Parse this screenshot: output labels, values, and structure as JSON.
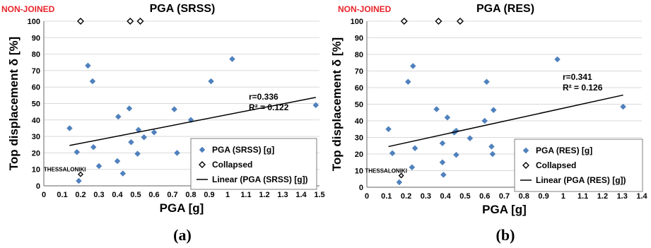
{
  "colors": {
    "marker": "#4F81BD",
    "tag": "#E8242A",
    "grid": "#D9D9D9",
    "axis": "#808080",
    "line": "#000000"
  },
  "chart_data": [
    {
      "type": "scatter",
      "panel_label": "(a)",
      "title": "PGA (SRSS)",
      "tag": "NON-JOINED",
      "xlabel": "PGA [g]",
      "ylabel": "Top displacement δ [%]",
      "xlim": [
        0,
        1.5
      ],
      "ylim": [
        0,
        100
      ],
      "x_ticks": [
        "0",
        "0.1",
        "0.2",
        "0.3",
        "0.4",
        "0.5",
        "0.6",
        "0.7",
        "0.8",
        "0.9",
        "1",
        "1.1",
        "1.2",
        "1.3",
        "1.4",
        "1.5"
      ],
      "y_ticks": [
        "0",
        "10",
        "20",
        "30",
        "40",
        "50",
        "60",
        "70",
        "80",
        "90",
        "100"
      ],
      "grid": true,
      "legend_position": "bottom-right",
      "series": [
        {
          "name": "PGA (SRSS) [g]",
          "marker": "diamond-filled",
          "points": [
            [
              0.14,
              35
            ],
            [
              0.18,
              20.5
            ],
            [
              0.19,
              3
            ],
            [
              0.24,
              73
            ],
            [
              0.265,
              63.5
            ],
            [
              0.27,
              23.5
            ],
            [
              0.3,
              12
            ],
            [
              0.4,
              15
            ],
            [
              0.405,
              42
            ],
            [
              0.43,
              7.5
            ],
            [
              0.465,
              47
            ],
            [
              0.475,
              26.5
            ],
            [
              0.51,
              19.5
            ],
            [
              0.515,
              34
            ],
            [
              0.545,
              29.5
            ],
            [
              0.6,
              32.5
            ],
            [
              0.71,
              46.5
            ],
            [
              0.725,
              20
            ],
            [
              0.8,
              40
            ],
            [
              0.85,
              24.5
            ],
            [
              0.91,
              63.5
            ],
            [
              0.985,
              22
            ],
            [
              1.025,
              77
            ],
            [
              1.48,
              49
            ]
          ]
        },
        {
          "name": "Collapsed",
          "marker": "diamond-open",
          "points": [
            [
              0.2,
              100
            ],
            [
              0.47,
              100
            ],
            [
              0.525,
              100
            ]
          ]
        },
        {
          "name": "Linear (PGA (SRSS) [g])",
          "marker": "line",
          "points": [
            [
              0.14,
              24.5
            ],
            [
              1.48,
              53.7
            ]
          ]
        }
      ],
      "annotations": [
        {
          "text": "r=0.336",
          "x": 1.05,
          "y": 59
        },
        {
          "text": "R² = 0.122",
          "x": 1.05,
          "y": 52
        },
        {
          "text": "THESSALONIKI",
          "x": 0.015,
          "y": 10
        }
      ],
      "highlight_point": {
        "label": "THESSALONIKI",
        "x": 0.2,
        "y": 7
      }
    },
    {
      "type": "scatter",
      "panel_label": "(b)",
      "title": "PGA (RES)",
      "tag": "NON-JOINED",
      "xlabel": "PGA [g]",
      "ylabel": "Top displacement δ [%]",
      "xlim": [
        0,
        1.4
      ],
      "ylim": [
        0,
        100
      ],
      "x_ticks": [
        "0",
        "0.1",
        "0.2",
        "0.3",
        "0.4",
        "0.5",
        "0.6",
        "0.7",
        "0.8",
        "0.9",
        "1",
        "1.1",
        "1.2",
        "1.3",
        "1.4"
      ],
      "y_ticks": [
        "0",
        "10",
        "20",
        "30",
        "40",
        "50",
        "60",
        "70",
        "80",
        "90",
        "100"
      ],
      "grid": true,
      "legend_position": "bottom-right",
      "series": [
        {
          "name": "PGA (RES) [g]",
          "marker": "diamond-filled",
          "points": [
            [
              0.11,
              35
            ],
            [
              0.13,
              20.5
            ],
            [
              0.165,
              3
            ],
            [
              0.21,
              63.5
            ],
            [
              0.23,
              12
            ],
            [
              0.235,
              73
            ],
            [
              0.245,
              23.5
            ],
            [
              0.355,
              47
            ],
            [
              0.385,
              26.5
            ],
            [
              0.385,
              15
            ],
            [
              0.39,
              7.5
            ],
            [
              0.41,
              42
            ],
            [
              0.445,
              33
            ],
            [
              0.455,
              34
            ],
            [
              0.455,
              19.5
            ],
            [
              0.525,
              29.5
            ],
            [
              0.6,
              40
            ],
            [
              0.61,
              63.5
            ],
            [
              0.635,
              24.5
            ],
            [
              0.64,
              20
            ],
            [
              0.645,
              46.5
            ],
            [
              0.775,
              22
            ],
            [
              0.97,
              77
            ],
            [
              1.305,
              48.5
            ]
          ]
        },
        {
          "name": "Collapsed",
          "marker": "diamond-open",
          "points": [
            [
              0.19,
              100
            ],
            [
              0.365,
              100
            ],
            [
              0.475,
              100
            ]
          ]
        },
        {
          "name": "Linear (PGA (RES) [g])",
          "marker": "line",
          "points": [
            [
              0.11,
              24.5
            ],
            [
              1.305,
              55.5
            ]
          ]
        }
      ],
      "annotations": [
        {
          "text": "r=0.341",
          "x": 0.97,
          "y": 61
        },
        {
          "text": "R² = 0.126",
          "x": 0.97,
          "y": 54
        },
        {
          "text": "THESSALONIKI",
          "x": 0.005,
          "y": 10
        }
      ],
      "highlight_point": {
        "label": "THESSALONIKI",
        "x": 0.175,
        "y": 7
      }
    }
  ]
}
